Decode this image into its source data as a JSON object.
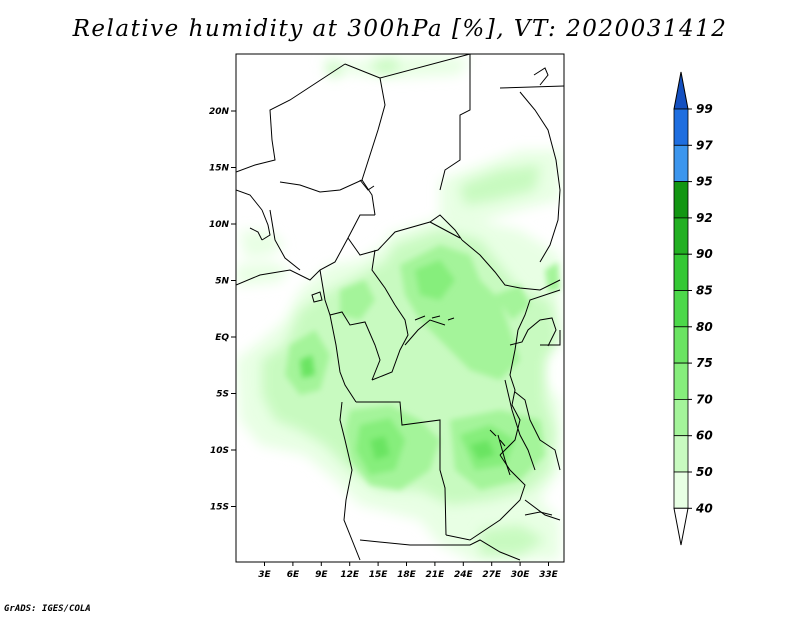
{
  "title": "Relative humidity at 300hPa [%], VT: 2020031412",
  "credit": "GrADS: IGES/COLA",
  "colors": {
    "lt40": "#ffffff",
    "40_50": "#e8ffe4",
    "50_60": "#c8fac0",
    "60_70": "#a4f49a",
    "70_75": "#86ee7c",
    "75_80": "#6ae462",
    "80_85": "#4cd84a",
    "85_90": "#34c834",
    "90_92": "#22b022",
    "92_95": "#129612",
    "95_97": "#3c96ee",
    "97_99": "#1e6ee0",
    "gt99": "#1450c0",
    "border": "#000000"
  },
  "map": {
    "lon_labels": [
      "3E",
      "6E",
      "9E",
      "12E",
      "15E",
      "18E",
      "21E",
      "24E",
      "27E",
      "30E",
      "33E"
    ],
    "lat_labels": [
      "20N",
      "15N",
      "10N",
      "5N",
      "EQ",
      "5S",
      "10S",
      "15S"
    ]
  },
  "legend": {
    "labels": [
      "99",
      "97",
      "95",
      "92",
      "90",
      "85",
      "80",
      "75",
      "70",
      "60",
      "50",
      "40"
    ]
  }
}
